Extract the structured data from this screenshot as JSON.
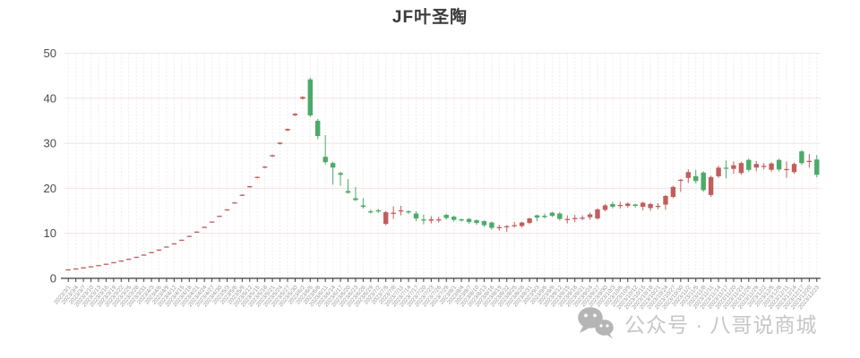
{
  "chart_data": {
    "type": "candlestick",
    "title": "JF叶圣陶",
    "xlabel": "",
    "ylabel": "",
    "ylim": [
      0,
      50
    ],
    "yticks": [
      0,
      10,
      20,
      30,
      40,
      50
    ],
    "grid": true,
    "legend": "none",
    "colors": {
      "up": "#c25d5d",
      "down": "#4caa68",
      "grid_v": "#f3e8e8",
      "grid_h": "#efe4e4",
      "axis": "#3c3c3c",
      "y_label": "#4b4b4b",
      "x_label": "#999999"
    },
    "x_labels": [
      "2023/3/1",
      "2023/3/4",
      "2023/3/7",
      "2023/3/10",
      "2023/3/13",
      "2023/3/16",
      "2023/3/19",
      "2023/3/22",
      "2023/3/25",
      "2023/3/28",
      "2023/3/31",
      "2023/4/3",
      "2023/4/6",
      "2023/4/9",
      "2023/4/12",
      "2023/4/15",
      "2023/4/18",
      "2023/4/21",
      "2023/4/24",
      "2023/4/27",
      "2023/4/30",
      "2023/5/3",
      "2023/5/6",
      "2023/5/9",
      "2023/5/12",
      "2023/5/15",
      "2023/5/18",
      "2023/5/21",
      "2023/5/24",
      "2023/5/27",
      "2023/5/30",
      "2023/6/2",
      "2023/6/5",
      "2023/6/8",
      "2023/6/11",
      "2023/6/14",
      "2023/6/17",
      "2023/6/20",
      "2023/6/23",
      "2023/6/26",
      "2023/6/29",
      "2023/7/2",
      "2023/7/5",
      "2023/7/8",
      "2023/7/11",
      "2023/7/14",
      "2023/7/17",
      "2023/7/20",
      "2023/7/23",
      "2023/7/26",
      "2023/7/29",
      "2023/8/1",
      "2023/8/4",
      "2023/8/7",
      "2023/8/10",
      "2023/8/13",
      "2023/8/16",
      "2023/8/19",
      "2023/8/22",
      "2023/8/25",
      "2023/8/28",
      "2023/8/31",
      "2023/9/3",
      "2023/9/6",
      "2023/9/9",
      "2023/9/12",
      "2023/9/15",
      "2023/9/18",
      "2023/9/21",
      "2023/9/24",
      "2023/9/27",
      "2023/9/30",
      "2023/10/3",
      "2023/10/6",
      "2023/10/9",
      "2023/10/12",
      "2023/10/15",
      "2023/10/18",
      "2023/10/21",
      "2023/10/24",
      "2023/10/27",
      "2023/10/30",
      "2023/11/2",
      "2023/11/5",
      "2023/11/8",
      "2023/11/11",
      "2023/11/14",
      "2023/11/17",
      "2023/11/20",
      "2023/11/23",
      "2023/11/26",
      "2023/11/29",
      "2023/12/2",
      "2023/12/5",
      "2023/12/8",
      "2023/12/11",
      "2023/12/14",
      "2023/12/17",
      "2023/12/20",
      "2023/12/23"
    ],
    "ohlc_order": [
      "open",
      "close",
      "low",
      "high"
    ],
    "ohlc": [
      [
        1.99,
        2.01,
        1.98,
        2.02
      ],
      [
        2.19,
        2.21,
        2.18,
        2.22
      ],
      [
        2.42,
        2.44,
        2.41,
        2.45
      ],
      [
        2.66,
        2.68,
        2.65,
        2.69
      ],
      [
        2.92,
        2.96,
        2.91,
        2.97
      ],
      [
        3.22,
        3.26,
        3.21,
        3.27
      ],
      [
        3.55,
        3.59,
        3.54,
        3.6
      ],
      [
        3.91,
        3.95,
        3.9,
        3.96
      ],
      [
        4.31,
        4.35,
        4.29,
        4.36
      ],
      [
        4.74,
        4.8,
        4.72,
        4.81
      ],
      [
        5.23,
        5.29,
        5.21,
        5.31
      ],
      [
        5.76,
        5.82,
        5.74,
        5.84
      ],
      [
        6.35,
        6.41,
        6.32,
        6.43
      ],
      [
        6.99,
        7.07,
        6.96,
        7.09
      ],
      [
        7.7,
        7.78,
        7.66,
        7.8
      ],
      [
        8.48,
        8.58,
        8.44,
        8.6
      ],
      [
        9.34,
        9.44,
        9.29,
        9.47
      ],
      [
        10.3,
        10.4,
        10.24,
        10.43
      ],
      [
        11.34,
        11.46,
        11.28,
        11.49
      ],
      [
        12.5,
        12.62,
        12.43,
        12.66
      ],
      [
        13.76,
        13.9,
        13.69,
        13.94
      ],
      [
        15.16,
        15.32,
        15.08,
        15.36
      ],
      [
        16.71,
        16.87,
        16.62,
        16.92
      ],
      [
        18.4,
        18.58,
        18.3,
        18.63
      ],
      [
        20.27,
        20.47,
        20.16,
        20.53
      ],
      [
        22.33,
        22.55,
        22.21,
        22.61
      ],
      [
        24.6,
        24.84,
        24.47,
        24.91
      ],
      [
        27.09,
        27.37,
        26.95,
        27.45
      ],
      [
        29.85,
        30.15,
        29.7,
        30.24
      ],
      [
        32.87,
        33.21,
        32.7,
        33.31
      ],
      [
        36.22,
        36.58,
        36.04,
        36.69
      ],
      [
        39.9,
        40.3,
        39.7,
        40.42
      ],
      [
        44.2,
        36.2,
        35.8,
        44.6
      ],
      [
        35.0,
        31.6,
        30.9,
        35.4
      ],
      [
        27.0,
        25.8,
        25.3,
        31.8
      ],
      [
        25.6,
        24.6,
        20.8,
        25.9
      ],
      [
        23.4,
        23.0,
        20.6,
        23.6
      ],
      [
        19.4,
        19.0,
        18.8,
        22.0
      ],
      [
        17.8,
        17.4,
        17.2,
        20.3
      ],
      [
        16.2,
        15.9,
        15.5,
        17.8
      ],
      [
        14.9,
        14.7,
        14.4,
        15.3
      ],
      [
        15.1,
        14.9,
        14.5,
        15.4
      ],
      [
        12.1,
        14.7,
        11.8,
        15.0
      ],
      [
        14.4,
        14.6,
        13.2,
        16.0
      ],
      [
        14.9,
        15.1,
        14.0,
        16.1
      ],
      [
        14.9,
        14.7,
        14.3,
        15.1
      ],
      [
        14.4,
        13.3,
        12.7,
        14.9
      ],
      [
        13.1,
        12.9,
        12.0,
        14.2
      ],
      [
        12.8,
        13.1,
        12.2,
        13.8
      ],
      [
        13.0,
        13.1,
        12.4,
        13.7
      ],
      [
        14.1,
        13.4,
        13.0,
        14.4
      ],
      [
        13.7,
        13.0,
        12.6,
        13.9
      ],
      [
        13.1,
        12.9,
        12.6,
        13.3
      ],
      [
        13.2,
        12.5,
        12.1,
        13.4
      ],
      [
        12.9,
        12.3,
        11.9,
        13.1
      ],
      [
        12.7,
        11.8,
        11.4,
        12.9
      ],
      [
        12.4,
        11.2,
        10.8,
        12.6
      ],
      [
        11.2,
        11.4,
        10.6,
        11.9
      ],
      [
        11.5,
        11.6,
        10.3,
        11.8
      ],
      [
        11.6,
        11.8,
        11.3,
        12.5
      ],
      [
        11.6,
        12.4,
        11.3,
        12.6
      ],
      [
        12.3,
        13.3,
        12.0,
        13.5
      ],
      [
        14.0,
        13.5,
        12.7,
        14.2
      ],
      [
        13.9,
        13.6,
        13.3,
        14.4
      ],
      [
        14.6,
        13.9,
        13.6,
        14.8
      ],
      [
        14.4,
        13.2,
        12.8,
        14.7
      ],
      [
        13.0,
        13.2,
        12.2,
        14.0
      ],
      [
        13.2,
        13.4,
        12.5,
        14.1
      ],
      [
        13.3,
        13.5,
        12.9,
        14.0
      ],
      [
        13.6,
        14.2,
        13.0,
        14.6
      ],
      [
        13.3,
        15.3,
        13.0,
        15.6
      ],
      [
        15.2,
        16.2,
        14.9,
        16.5
      ],
      [
        16.5,
        15.9,
        15.5,
        17.0
      ],
      [
        16.2,
        16.3,
        15.5,
        17.0
      ],
      [
        16.1,
        16.6,
        15.7,
        16.9
      ],
      [
        16.4,
        16.1,
        15.7,
        16.6
      ],
      [
        15.9,
        16.8,
        15.1,
        17.0
      ],
      [
        15.6,
        16.5,
        15.0,
        16.8
      ],
      [
        15.9,
        16.1,
        15.3,
        16.7
      ],
      [
        16.4,
        18.3,
        15.2,
        18.5
      ],
      [
        18.1,
        20.3,
        17.8,
        20.6
      ],
      [
        21.7,
        21.9,
        19.2,
        22.1
      ],
      [
        22.3,
        23.6,
        21.2,
        24.2
      ],
      [
        22.7,
        21.6,
        21.1,
        24.1
      ],
      [
        23.5,
        19.6,
        19.2,
        23.8
      ],
      [
        18.5,
        22.5,
        18.1,
        22.8
      ],
      [
        22.7,
        24.6,
        22.3,
        25.0
      ],
      [
        24.6,
        24.4,
        22.2,
        26.2
      ],
      [
        24.3,
        25.1,
        23.2,
        26.0
      ],
      [
        23.4,
        25.6,
        23.0,
        25.9
      ],
      [
        26.3,
        24.1,
        23.7,
        26.6
      ],
      [
        24.6,
        25.4,
        23.8,
        26.1
      ],
      [
        24.8,
        25.0,
        24.2,
        25.6
      ],
      [
        24.1,
        25.5,
        23.7,
        25.8
      ],
      [
        26.3,
        24.2,
        23.8,
        26.6
      ],
      [
        24.1,
        24.3,
        22.3,
        26.0
      ],
      [
        23.6,
        25.4,
        23.2,
        25.7
      ],
      [
        28.2,
        25.6,
        25.2,
        28.5
      ],
      [
        25.9,
        26.1,
        24.6,
        27.6
      ],
      [
        26.4,
        23.0,
        22.4,
        27.4
      ]
    ]
  },
  "watermark": {
    "icon": "wechat-icon",
    "text": "公众号 · 八哥说商城"
  }
}
